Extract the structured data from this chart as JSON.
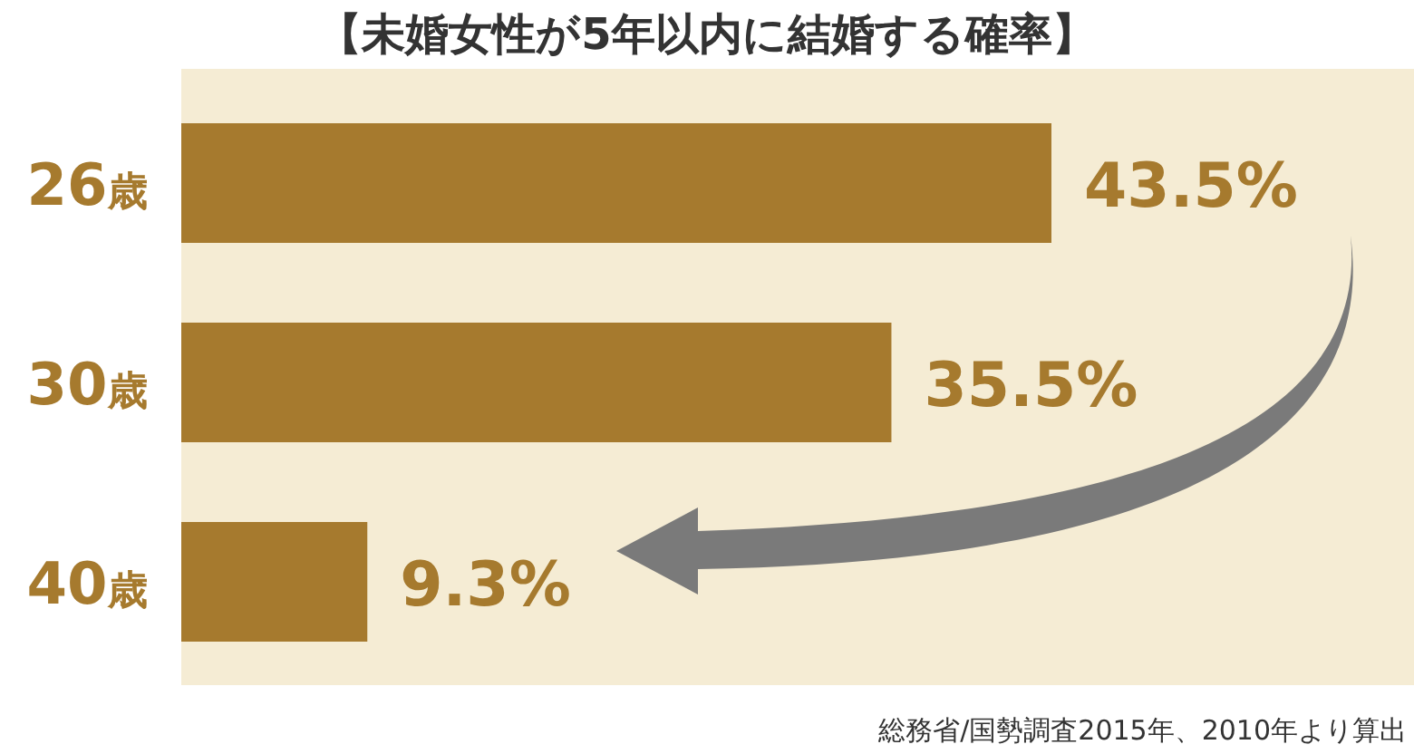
{
  "chart_data": {
    "type": "bar",
    "orientation": "horizontal",
    "title": "【未婚女性が5年以内に結婚する確率】",
    "categories": [
      "26歳",
      "30歳",
      "40歳"
    ],
    "series": [
      {
        "color": "#a67a2e",
        "values": [
          43.5,
          35.5,
          9.3
        ],
        "value_labels": [
          "43.5%",
          "35.5%",
          "9.3%"
        ]
      }
    ],
    "annotations": [
      "総務省/国勢調査2015年、2010年より算出"
    ]
  }
}
